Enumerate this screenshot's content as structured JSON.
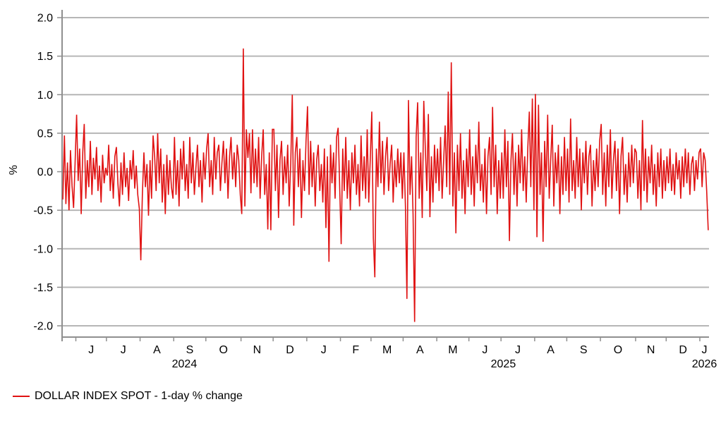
{
  "chart_data": {
    "type": "line",
    "title": "",
    "ylabel": "%",
    "ylim": [
      -2.0,
      2.0
    ],
    "ytick_step": 0.5,
    "grid": "horizontal-only",
    "legend_position": "bottom-left",
    "line_color": "#e01212",
    "axis_color": "#8f8f8f",
    "grid_color": "#b6b6b6",
    "text_color": "#000000",
    "x_months": [
      {
        "label": "",
        "points": 9
      },
      {
        "label": "J",
        "points": 20
      },
      {
        "label": "J",
        "points": 22
      },
      {
        "label": "A",
        "points": 22
      },
      {
        "label": "S",
        "points": 21
      },
      {
        "label": "O",
        "points": 23
      },
      {
        "label": "N",
        "points": 21
      },
      {
        "label": "D",
        "points": 22
      },
      {
        "label": "J",
        "points": 22
      },
      {
        "label": "F",
        "points": 20
      },
      {
        "label": "M",
        "points": 21
      },
      {
        "label": "A",
        "points": 22
      },
      {
        "label": "M",
        "points": 21
      },
      {
        "label": "J",
        "points": 21
      },
      {
        "label": "J",
        "points": 22
      },
      {
        "label": "A",
        "points": 21
      },
      {
        "label": "S",
        "points": 22
      },
      {
        "label": "O",
        "points": 23
      },
      {
        "label": "N",
        "points": 20
      },
      {
        "label": "D",
        "points": 22
      },
      {
        "label": "J",
        "points": 6
      }
    ],
    "x_years": [
      {
        "label": "2024",
        "month_start": 0,
        "month_end": 8
      },
      {
        "label": "2025",
        "month_start": 8,
        "month_end": 20
      },
      {
        "label": "2026",
        "month_start": 20,
        "month_end": 21
      }
    ],
    "series": [
      {
        "name": "DOLLAR INDEX SPOT - 1-day % change",
        "values": [
          -0.36,
          0.47,
          -0.42,
          0.12,
          -0.5,
          0.28,
          -0.18,
          -0.47,
          0.1,
          0.74,
          -0.12,
          0.3,
          -0.55,
          0.25,
          0.62,
          -0.35,
          0.15,
          -0.2,
          0.4,
          -0.3,
          0.18,
          -0.1,
          0.32,
          -0.25,
          0.08,
          -0.4,
          0.22,
          -0.15,
          0.05,
          -0.05,
          0.35,
          -0.25,
          0.1,
          -0.35,
          0.2,
          0.32,
          -0.15,
          -0.45,
          0.12,
          -0.3,
          0.25,
          -0.2,
          0.05,
          -0.38,
          0.15,
          -0.1,
          0.28,
          -0.22,
          0.08,
          -0.3,
          -0.48,
          -1.15,
          -0.3,
          0.25,
          -0.2,
          0.1,
          -0.57,
          0.15,
          -0.35,
          0.47,
          0.2,
          -0.25,
          0.5,
          -0.15,
          0.3,
          -0.4,
          0.1,
          -0.55,
          0.22,
          -0.3,
          0.15,
          -0.2,
          -0.35,
          0.45,
          -0.3,
          0.15,
          -0.45,
          0.3,
          -0.1,
          0.4,
          -0.25,
          0.1,
          -0.35,
          0.45,
          -0.15,
          0.25,
          -0.3,
          0.05,
          0.35,
          -0.2,
          0.15,
          -0.4,
          0.25,
          -0.1,
          0.3,
          0.5,
          -0.2,
          0.15,
          -0.3,
          0.45,
          -0.1,
          0.25,
          0.35,
          -0.25,
          0.1,
          0.4,
          -0.15,
          0.3,
          -0.35,
          0.2,
          0.45,
          -0.1,
          0.25,
          -0.2,
          0.35,
          0.15,
          -0.3,
          -0.55,
          1.6,
          -0.45,
          0.55,
          0.18,
          0.5,
          -0.28,
          0.55,
          -0.15,
          0.3,
          -0.2,
          0.45,
          -0.35,
          0.2,
          0.55,
          -0.3,
          0.1,
          -0.75,
          0.25,
          -0.76,
          0.55,
          0.55,
          -0.25,
          0.35,
          -0.6,
          0.15,
          0.4,
          -0.3,
          0.2,
          -0.15,
          0.35,
          -0.45,
          0.1,
          1.0,
          -0.7,
          0.25,
          0.45,
          -0.2,
          0.3,
          -0.6,
          0.15,
          -0.25,
          0.4,
          0.85,
          -0.3,
          0.4,
          -0.2,
          0.25,
          -0.45,
          0.15,
          0.35,
          -0.25,
          0.1,
          -0.4,
          0.3,
          -0.73,
          0.2,
          -1.17,
          0.35,
          -0.15,
          0.25,
          -0.35,
          0.45,
          0.57,
          -0.2,
          -0.94,
          0.3,
          -0.25,
          0.45,
          -0.35,
          0.15,
          -0.5,
          0.25,
          -0.15,
          0.35,
          -0.3,
          0.1,
          -0.45,
          0.47,
          -0.25,
          0.2,
          -0.35,
          0.55,
          -0.4,
          0.15,
          0.78,
          -0.86,
          -1.37,
          0.3,
          -0.2,
          0.65,
          -0.15,
          0.4,
          -0.3,
          0.2,
          0.45,
          -0.25,
          0.1,
          0.35,
          -0.4,
          0.15,
          -0.2,
          0.3,
          -0.15,
          0.25,
          -0.35,
          0.25,
          -0.45,
          -1.65,
          0.93,
          -0.3,
          0.2,
          -0.55,
          -1.95,
          0.45,
          0.9,
          -0.35,
          0.25,
          -0.6,
          0.92,
          0.3,
          -0.25,
          0.75,
          -0.59,
          0.2,
          -0.4,
          0.35,
          -0.15,
          0.3,
          -0.25,
          0.45,
          -0.35,
          0.15,
          0.6,
          -0.2,
          1.04,
          -0.3,
          1.42,
          -0.45,
          0.25,
          -0.8,
          0.35,
          -0.25,
          0.5,
          -0.35,
          0.15,
          -0.55,
          0.3,
          -0.2,
          0.55,
          -0.3,
          0.2,
          -0.45,
          0.35,
          -0.15,
          0.65,
          -0.25,
          0.1,
          -0.4,
          0.3,
          -0.55,
          0.2,
          0.45,
          -0.3,
          0.84,
          -0.2,
          0.35,
          -0.55,
          0.15,
          -0.35,
          0.25,
          -0.35,
          0.55,
          -0.2,
          0.4,
          -0.9,
          0.15,
          0.5,
          -0.3,
          0.25,
          -0.45,
          0.35,
          -0.15,
          0.55,
          -0.25,
          0.2,
          -0.4,
          0.3,
          0.78,
          -0.2,
          0.95,
          -0.5,
          1.01,
          -0.85,
          0.87,
          -0.3,
          0.25,
          -0.91,
          0.4,
          -0.2,
          0.74,
          -0.35,
          0.15,
          0.61,
          -0.45,
          0.25,
          -0.15,
          0.35,
          -0.55,
          0.2,
          -0.3,
          0.45,
          -0.25,
          0.3,
          -0.4,
          0.69,
          -0.25,
          0.15,
          -0.35,
          0.45,
          -0.2,
          0.3,
          -0.5,
          0.25,
          -0.15,
          0.4,
          -0.3,
          0.2,
          0.35,
          -0.45,
          0.15,
          -0.25,
          0.3,
          -0.2,
          0.4,
          0.62,
          -0.3,
          0.25,
          -0.45,
          0.35,
          -0.2,
          0.55,
          -0.35,
          0.15,
          0.4,
          -0.25,
          0.3,
          -0.55,
          0.2,
          0.45,
          -0.3,
          0.1,
          -0.4,
          0.25,
          -0.2,
          0.35,
          -0.15,
          0.3,
          0.25,
          -0.35,
          0.15,
          -0.5,
          0.67,
          -0.25,
          0.3,
          -0.4,
          0.2,
          -0.15,
          0.35,
          -0.3,
          0.1,
          -0.45,
          0.25,
          -0.2,
          0.3,
          -0.35,
          0.15,
          -0.25,
          0.2,
          -0.15,
          0.3,
          -0.25,
          0.1,
          -0.3,
          0.25,
          -0.1,
          0.15,
          -0.35,
          0.2,
          -0.2,
          0.3,
          -0.15,
          0.25,
          -0.3,
          0.1,
          0.2,
          -0.25,
          0.15,
          -0.1,
          0.25,
          0.3,
          -0.2,
          0.25,
          0.15,
          -0.25,
          -0.76
        ]
      }
    ]
  }
}
